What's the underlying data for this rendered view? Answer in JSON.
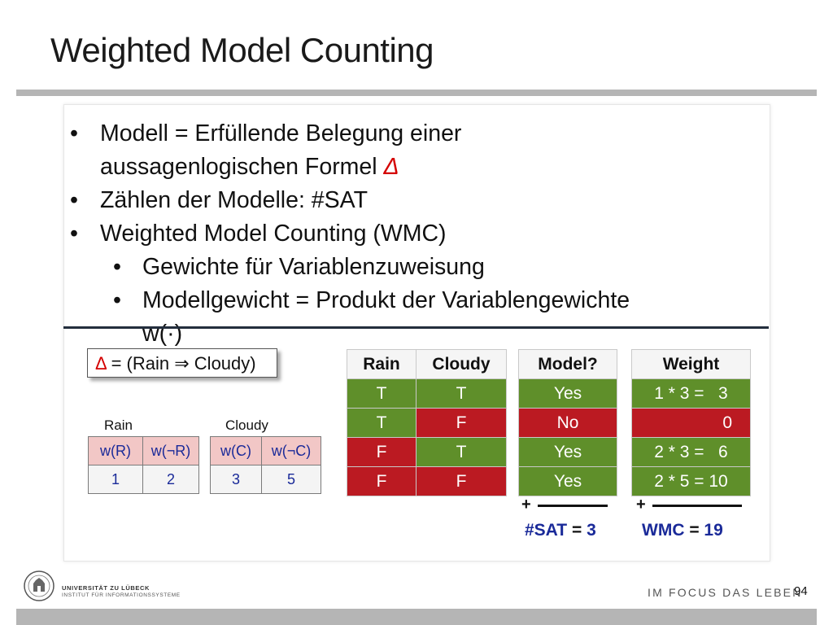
{
  "title": "Weighted Model Counting",
  "bullets": [
    {
      "text": "Modell = Erfüllende Belegung einer",
      "level": 1
    },
    {
      "text_main": "aussagenlogischen Formel ",
      "text_red": "Δ",
      "level": 1,
      "continuation": true
    },
    {
      "text": "Zählen der Modelle: #SAT",
      "level": 1
    },
    {
      "text": "Weighted Model Counting (WMC)",
      "level": 1
    },
    {
      "text": "Gewichte für Variablenzuweisung",
      "level": 2
    },
    {
      "text": "Modellgewicht = Produkt der Variablengewichte",
      "level": 2
    },
    {
      "text": "w(·)",
      "level": 2,
      "continuation": true
    }
  ],
  "bullet_symbol": "•",
  "formula": {
    "delta": "Δ",
    "rest": " = (Rain ⇒ Cloudy)"
  },
  "rain_table": {
    "label": "Rain",
    "headers": [
      "w(R)",
      "w(¬R)"
    ],
    "values": [
      "1",
      "2"
    ]
  },
  "cloudy_table": {
    "label": "Cloudy",
    "headers": [
      "w(C)",
      "w(¬C)"
    ],
    "values": [
      "3",
      "5"
    ]
  },
  "truth_table": {
    "headers": [
      "Rain",
      "Cloudy"
    ],
    "rows": [
      {
        "rain": "T",
        "cloudy": "T",
        "cloudy_color": "green",
        "rain_color": "green"
      },
      {
        "rain": "T",
        "cloudy": "F",
        "cloudy_color": "red",
        "rain_color": "green"
      },
      {
        "rain": "F",
        "cloudy": "T",
        "cloudy_color": "green",
        "rain_color": "red"
      },
      {
        "rain": "F",
        "cloudy": "F",
        "cloudy_color": "red",
        "rain_color": "red"
      }
    ]
  },
  "model_table": {
    "header": "Model?",
    "rows": [
      {
        "text": "Yes",
        "color": "green"
      },
      {
        "text": "No",
        "color": "red"
      },
      {
        "text": "Yes",
        "color": "green"
      },
      {
        "text": "Yes",
        "color": "green"
      }
    ]
  },
  "weight_table": {
    "header": "Weight",
    "rows": [
      {
        "text": "1 * 3 =   3",
        "color": "green"
      },
      {
        "text": "0",
        "color": "red"
      },
      {
        "text": "2 * 3 =   6",
        "color": "green"
      },
      {
        "text": "2 * 5 = 10",
        "color": "green"
      }
    ]
  },
  "sums": {
    "plus": "+",
    "sat_label": "#SAT",
    "sat_eq": " = ",
    "sat_value": "3",
    "wmc_label": "WMC",
    "wmc_eq": " = ",
    "wmc_value": "19"
  },
  "colors": {
    "green": "#5f8f2a",
    "red": "#bb1a22",
    "blue": "#1a2a99"
  },
  "footer": {
    "university": "UNIVERSITÄT ZU LÜBECK",
    "institute": "INSTITUT FÜR INFORMATIONSSYSTEME",
    "slogan": "IM FOCUS DAS LEBEN",
    "page_number": "94",
    "seal_icon": "university-seal-icon"
  }
}
